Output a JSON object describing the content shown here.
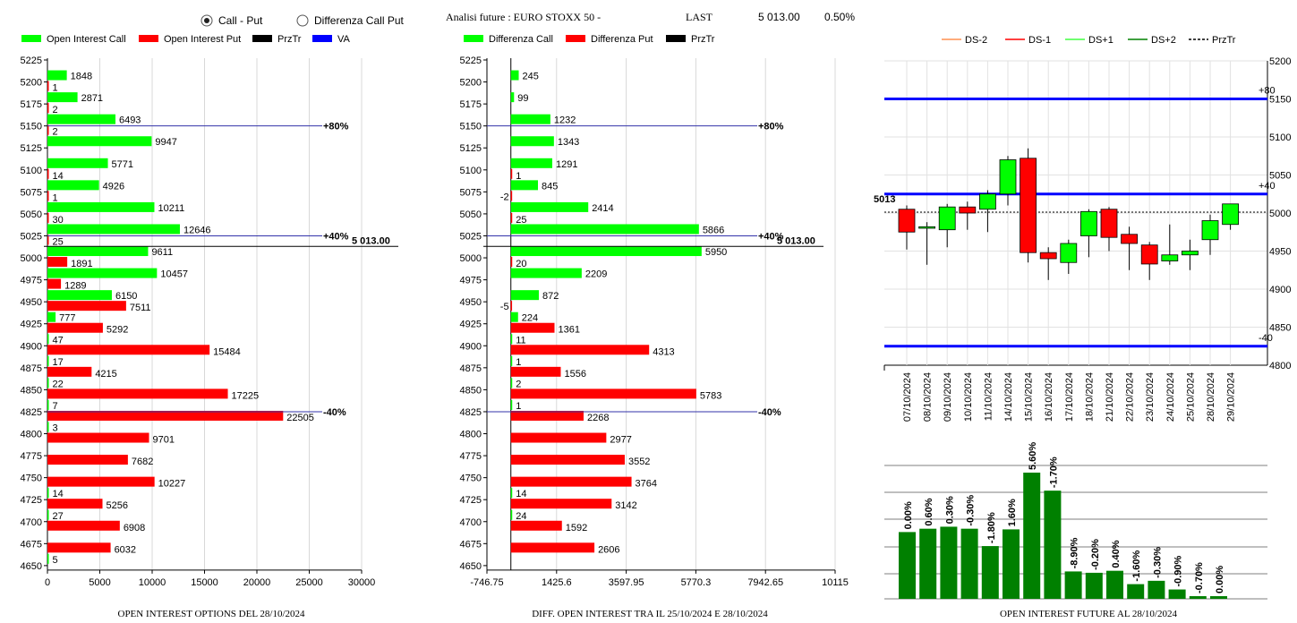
{
  "header": {
    "radio_call_put": "Call - Put",
    "radio_diff": "Differenza Call Put",
    "call_put_selected": true,
    "analysis_label": "Analisi future : EURO STOXX 50 -",
    "last_label": "LAST",
    "last_value": "5 013.00",
    "last_change": "0.50%"
  },
  "colors": {
    "call": "#00ff00",
    "put": "#ff0000",
    "przTr": "#000000",
    "va": "#0000ff",
    "dark_green": "#008000"
  },
  "legends": {
    "oi": [
      "Open Interest Call",
      "Open Interest Put",
      "PrzTr",
      "VA"
    ],
    "diff": [
      "Differenza Call",
      "Differenza Put",
      "PrzTr"
    ],
    "candle": [
      "DS-2",
      "DS-1",
      "DS+1",
      "DS+2",
      "PrzTr"
    ]
  },
  "chart_data": [
    {
      "type": "bar",
      "title": "OPEN INTEREST OPTIONS DEL 28/10/2024",
      "categories": [
        "5225",
        "5200",
        "5175",
        "5150",
        "5125",
        "5100",
        "5075",
        "5050",
        "5025",
        "5000",
        "4975",
        "4950",
        "4925",
        "4900",
        "4875",
        "4850",
        "4825",
        "4800",
        "4775",
        "4750",
        "4725",
        "4700",
        "4675",
        "4650"
      ],
      "series": [
        {
          "name": "Open Interest Call",
          "values": [
            null,
            1848,
            2871,
            6493,
            9947,
            5771,
            4926,
            10211,
            12646,
            9611,
            10457,
            6150,
            777,
            47,
            17,
            22,
            7,
            3,
            null,
            null,
            14,
            27,
            null,
            5
          ]
        },
        {
          "name": "Open Interest Put",
          "values": [
            null,
            1,
            2,
            2,
            null,
            14,
            1,
            30,
            25,
            1891,
            1289,
            7511,
            5292,
            15484,
            4215,
            17225,
            22505,
            9701,
            7682,
            10227,
            5256,
            6908,
            6032,
            null
          ]
        }
      ],
      "xlim": [
        0,
        30000
      ],
      "xticks": [
        "0",
        "5000",
        "10000",
        "15000",
        "20000",
        "25000",
        "30000"
      ],
      "annotations": [
        {
          "strike": "5150",
          "label": "+80%"
        },
        {
          "strike": "5025",
          "label": "+40%"
        },
        {
          "strike": "4825",
          "label": "-40%"
        }
      ],
      "last_price": "5 013.00"
    },
    {
      "type": "bar",
      "title": "DIFF. OPEN INTEREST TRA IL 25/10/2024 E 28/10/2024",
      "categories": [
        "5225",
        "5200",
        "5175",
        "5150",
        "5125",
        "5100",
        "5075",
        "5050",
        "5025",
        "5000",
        "4975",
        "4950",
        "4925",
        "4900",
        "4875",
        "4850",
        "4825",
        "4800",
        "4775",
        "4750",
        "4725",
        "4700",
        "4675",
        "4650"
      ],
      "series": [
        {
          "name": "Differenza Call",
          "values": [
            null,
            245,
            99,
            1232,
            1343,
            1291,
            845,
            2414,
            5866,
            5950,
            2209,
            872,
            224,
            11,
            1,
            2,
            1,
            null,
            null,
            null,
            14,
            24,
            null,
            null
          ]
        },
        {
          "name": "Differenza Put",
          "values": [
            null,
            null,
            null,
            null,
            null,
            1,
            -2,
            25,
            null,
            20,
            null,
            -5,
            1361,
            4313,
            1556,
            5783,
            2268,
            2977,
            3552,
            3764,
            3142,
            1592,
            2606,
            null
          ]
        }
      ],
      "xlim": [
        -746.75,
        10115
      ],
      "xticks": [
        "-746.75",
        "1425.6",
        "3597.95",
        "5770.3",
        "7942.65",
        "10115"
      ],
      "annotations": [
        {
          "strike": "5150",
          "label": "+80%"
        },
        {
          "strike": "5025",
          "label": "+40%"
        },
        {
          "strike": "4825",
          "label": "-40%"
        }
      ],
      "last_price": "5 013.00"
    },
    {
      "type": "candlestick",
      "dates": [
        "07/10/2024",
        "08/10/2024",
        "09/10/2024",
        "10/10/2024",
        "11/10/2024",
        "14/10/2024",
        "15/10/2024",
        "16/10/2024",
        "17/10/2024",
        "18/10/2024",
        "21/10/2024",
        "22/10/2024",
        "23/10/2024",
        "24/10/2024",
        "25/10/2024",
        "28/10/2024",
        "29/10/2024"
      ],
      "candles": [
        {
          "o": 5005,
          "h": 5010,
          "l": 4952,
          "c": 4975
        },
        {
          "o": 4980,
          "h": 4988,
          "l": 4932,
          "c": 4982
        },
        {
          "o": 4978,
          "h": 5012,
          "l": 4955,
          "c": 5008
        },
        {
          "o": 5008,
          "h": 5015,
          "l": 4978,
          "c": 5000
        },
        {
          "o": 5005,
          "h": 5030,
          "l": 4975,
          "c": 5025
        },
        {
          "o": 5025,
          "h": 5075,
          "l": 5010,
          "c": 5070
        },
        {
          "o": 5072,
          "h": 5085,
          "l": 4935,
          "c": 4948
        },
        {
          "o": 4948,
          "h": 4955,
          "l": 4912,
          "c": 4940
        },
        {
          "o": 4935,
          "h": 4965,
          "l": 4920,
          "c": 4960
        },
        {
          "o": 4970,
          "h": 5005,
          "l": 4942,
          "c": 5002
        },
        {
          "o": 5005,
          "h": 5008,
          "l": 4950,
          "c": 4968
        },
        {
          "o": 4972,
          "h": 4982,
          "l": 4925,
          "c": 4960
        },
        {
          "o": 4958,
          "h": 4962,
          "l": 4912,
          "c": 4933
        },
        {
          "o": 4937,
          "h": 4985,
          "l": 4932,
          "c": 4945
        },
        {
          "o": 4945,
          "h": 4965,
          "l": 4925,
          "c": 4950
        },
        {
          "o": 4965,
          "h": 4998,
          "l": 4945,
          "c": 4990
        },
        {
          "o": 4985,
          "h": 5012,
          "l": 4978,
          "c": 5012
        }
      ],
      "ylim": [
        4800,
        5200
      ],
      "yticks": [
        "4800",
        "4850",
        "4900",
        "4950",
        "5000",
        "5050",
        "5100",
        "5150",
        "5200"
      ],
      "levels": [
        {
          "value": 5150,
          "label": "+80"
        },
        {
          "value": 5025,
          "label": "+40"
        },
        {
          "value": 4825,
          "label": "-40"
        }
      ],
      "przTr": 5013,
      "przTr_label": "5013"
    },
    {
      "type": "bar",
      "title": "OPEN INTEREST FUTURE AL 28/10/2024",
      "labels": [
        "0.00%",
        "0.60%",
        "0.30%",
        "-0.30%",
        "-1.80%",
        "1.60%",
        "5.60%",
        "-1.70%",
        "-8.90%",
        "-0.20%",
        "0.40%",
        "-1.60%",
        "-0.30%",
        "-0.90%",
        "-0.70%",
        "0.00%"
      ],
      "values": [
        100,
        105,
        108,
        105,
        79,
        104,
        189,
        162,
        41,
        39,
        42,
        22,
        27,
        14,
        4,
        4
      ]
    }
  ]
}
